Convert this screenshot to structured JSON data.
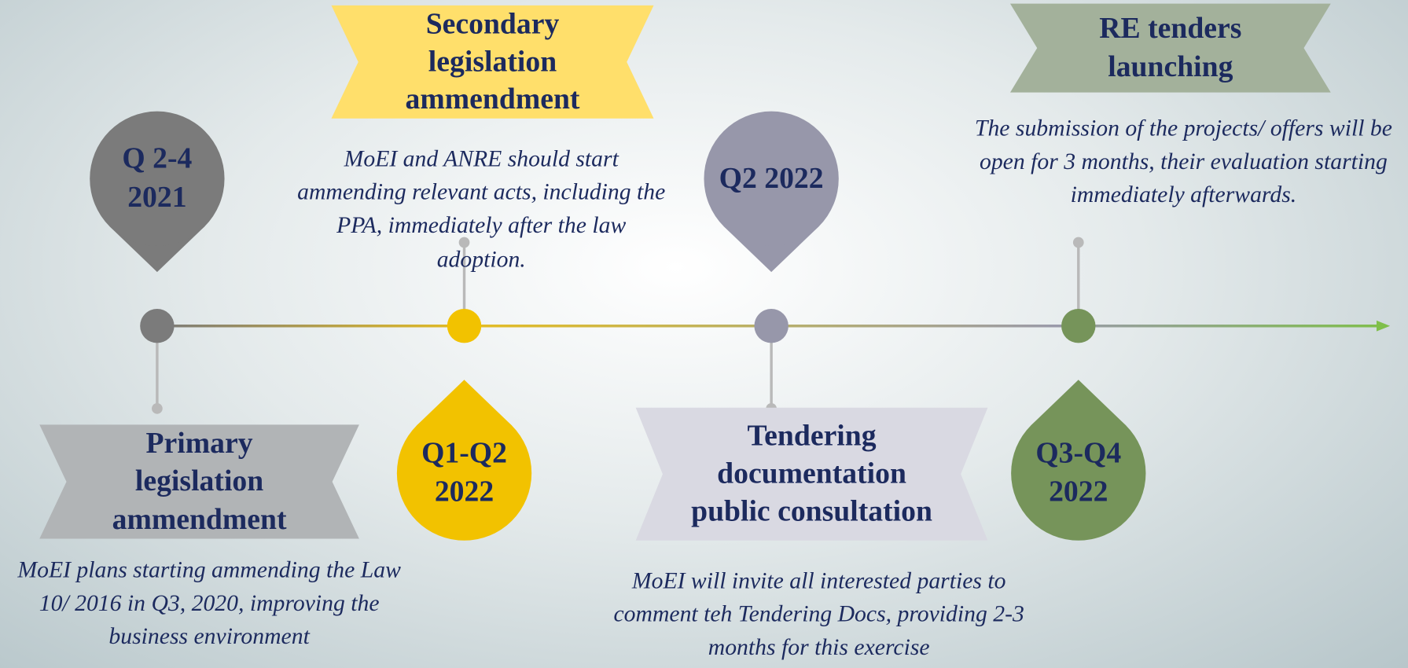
{
  "stages": [
    {
      "period": "Q 2-4 2021",
      "title": "Primary legislation ammendment",
      "description": "MoEI plans starting ammending the Law 10/ 2016 in Q3, 2020, improving the business environment"
    },
    {
      "period": "Q1-Q2 2022",
      "title": "Secondary legislation ammendment",
      "description": "MoEI and ANRE should start ammending relevant acts, including the PPA, immediately after the law adoption."
    },
    {
      "period": "Q2 2022",
      "title": "Tendering documentation public consultation",
      "description": "MoEI will invite all interested parties to comment teh Tendering Docs, providing 2-3 months for this exercise"
    },
    {
      "period": "Q3-Q4 2022",
      "title": "RE tenders launching",
      "description": "The submission of  the projects/ offers will be open for 3 months, their evaluation starting immediately afterwards."
    }
  ]
}
